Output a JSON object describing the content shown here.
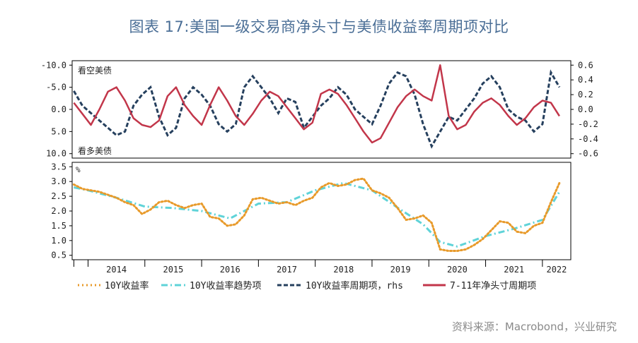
{
  "title": "图表 17:美国一级交易商净头寸与美债收益率周期项对比",
  "source": "资料来源：Macrobond，兴业研究",
  "colors": {
    "yield": "#e89a2a",
    "trend": "#5fd3d8",
    "cycle": "#26405e",
    "net": "#c2364a",
    "axis": "#000000"
  },
  "chart_data": [
    {
      "type": "line",
      "annotations": [
        "看空美债",
        "看多美债"
      ],
      "y_left": {
        "ticks": [
          "-10.0",
          "-5.0",
          "0.0",
          "5.0",
          "10.0"
        ],
        "range": [
          -11,
          11
        ],
        "inverted": true
      },
      "y_right": {
        "ticks": [
          "0.6",
          "0.4",
          "0.2",
          "0.0",
          "-0.2",
          "-0.4",
          "-0.6"
        ],
        "range": [
          -0.66,
          0.66
        ]
      },
      "series": [
        {
          "name": "7-11年净头寸周期项",
          "axis": "left",
          "style": "solid",
          "x": [
            2013.75,
            2013.9,
            2014.05,
            2014.2,
            2014.35,
            2014.5,
            2014.65,
            2014.8,
            2014.95,
            2015.1,
            2015.25,
            2015.4,
            2015.55,
            2015.7,
            2015.85,
            2016.0,
            2016.15,
            2016.3,
            2016.45,
            2016.6,
            2016.75,
            2016.9,
            2017.05,
            2017.2,
            2017.35,
            2017.5,
            2017.65,
            2017.8,
            2017.95,
            2018.1,
            2018.25,
            2018.4,
            2018.55,
            2018.7,
            2018.85,
            2019.0,
            2019.15,
            2019.3,
            2019.45,
            2019.6,
            2019.75,
            2019.9,
            2020.05,
            2020.2,
            2020.35,
            2020.5,
            2020.65,
            2020.8,
            2020.95,
            2021.1,
            2021.25,
            2021.4,
            2021.55,
            2021.7,
            2021.85,
            2022.0,
            2022.15,
            2022.3
          ],
          "y": [
            -1.5,
            1,
            3.5,
            0,
            -4,
            -5,
            -2,
            2,
            3.5,
            4,
            2.5,
            -3,
            -5,
            -1,
            1.5,
            3.5,
            -1,
            -5,
            -2,
            1.5,
            3.5,
            1,
            -2,
            -4,
            -3,
            -0.5,
            2,
            4.5,
            3,
            -3.5,
            -4.5,
            -3.5,
            -1,
            2,
            5,
            7.5,
            6.5,
            3,
            -0.5,
            -3,
            -4.5,
            -3,
            -2,
            -10,
            1.5,
            4.5,
            3.5,
            0.5,
            -1.5,
            -2.5,
            -1,
            1.5,
            3.5,
            2,
            -0.5,
            -2,
            -1.5,
            1.5
          ]
        },
        {
          "name": "10Y收益率周期项，rhs",
          "axis": "right",
          "style": "dashed",
          "x": [
            2013.75,
            2013.9,
            2014.05,
            2014.2,
            2014.35,
            2014.5,
            2014.65,
            2014.8,
            2014.95,
            2015.1,
            2015.25,
            2015.4,
            2015.55,
            2015.7,
            2015.85,
            2016.0,
            2016.15,
            2016.3,
            2016.45,
            2016.6,
            2016.75,
            2016.9,
            2017.05,
            2017.2,
            2017.35,
            2017.5,
            2017.65,
            2017.8,
            2017.95,
            2018.1,
            2018.25,
            2018.4,
            2018.55,
            2018.7,
            2018.85,
            2019.0,
            2019.15,
            2019.3,
            2019.45,
            2019.6,
            2019.75,
            2019.9,
            2020.05,
            2020.2,
            2020.35,
            2020.5,
            2020.65,
            2020.8,
            2020.95,
            2021.1,
            2021.25,
            2021.4,
            2021.55,
            2021.7,
            2021.85,
            2022.0,
            2022.15,
            2022.3
          ],
          "y": [
            0.25,
            0.05,
            -0.05,
            -0.15,
            -0.25,
            -0.35,
            -0.3,
            0.05,
            0.2,
            0.3,
            -0.1,
            -0.35,
            -0.25,
            0.15,
            0.3,
            0.2,
            0.05,
            -0.2,
            -0.3,
            -0.2,
            0.3,
            0.45,
            0.3,
            0.15,
            -0.05,
            0.15,
            0.1,
            -0.25,
            -0.1,
            0.05,
            0.15,
            0.3,
            0.2,
            0.0,
            -0.1,
            -0.2,
            0.05,
            0.35,
            0.5,
            0.45,
            0.2,
            -0.2,
            -0.5,
            -0.3,
            -0.1,
            -0.15,
            0.0,
            0.15,
            0.35,
            0.45,
            0.3,
            0.0,
            -0.1,
            -0.15,
            -0.3,
            -0.2,
            0.5,
            0.3
          ]
        }
      ]
    },
    {
      "type": "line",
      "unit": "%",
      "y_left": {
        "ticks": [
          "3.5",
          "3.0",
          "2.5",
          "2.0",
          "1.5",
          "1.0",
          "0.5"
        ],
        "range": [
          0.35,
          3.65
        ]
      },
      "x_axis": {
        "ticks": [
          "2014",
          "2015",
          "2016",
          "2017",
          "2018",
          "2019",
          "2020",
          "2021",
          "2022"
        ]
      },
      "series": [
        {
          "name": "10Y收益率",
          "style": "dotted",
          "x": [
            2013.75,
            2013.9,
            2014.05,
            2014.2,
            2014.35,
            2014.5,
            2014.65,
            2014.8,
            2014.95,
            2015.1,
            2015.25,
            2015.4,
            2015.55,
            2015.7,
            2015.85,
            2016.0,
            2016.15,
            2016.3,
            2016.45,
            2016.6,
            2016.75,
            2016.9,
            2017.05,
            2017.2,
            2017.35,
            2017.5,
            2017.65,
            2017.8,
            2017.95,
            2018.1,
            2018.25,
            2018.4,
            2018.55,
            2018.7,
            2018.85,
            2019.0,
            2019.15,
            2019.3,
            2019.45,
            2019.6,
            2019.75,
            2019.9,
            2020.05,
            2020.2,
            2020.35,
            2020.5,
            2020.65,
            2020.8,
            2020.95,
            2021.1,
            2021.25,
            2021.4,
            2021.55,
            2021.7,
            2021.85,
            2022.0,
            2022.15,
            2022.3
          ],
          "y": [
            2.9,
            2.75,
            2.7,
            2.65,
            2.55,
            2.45,
            2.3,
            2.2,
            1.9,
            2.05,
            2.3,
            2.35,
            2.2,
            2.1,
            2.2,
            2.25,
            1.8,
            1.75,
            1.5,
            1.55,
            1.85,
            2.4,
            2.45,
            2.35,
            2.25,
            2.3,
            2.2,
            2.35,
            2.45,
            2.8,
            2.95,
            2.85,
            2.9,
            3.05,
            3.1,
            2.7,
            2.6,
            2.45,
            2.1,
            1.7,
            1.75,
            1.85,
            1.6,
            0.7,
            0.65,
            0.65,
            0.7,
            0.85,
            1.05,
            1.35,
            1.65,
            1.6,
            1.3,
            1.25,
            1.5,
            1.6,
            2.3,
            2.95
          ]
        },
        {
          "name": "10Y收益率趋势项",
          "style": "dashdot",
          "x": [
            2013.75,
            2014.0,
            2014.5,
            2015.0,
            2015.5,
            2016.0,
            2016.5,
            2017.0,
            2017.5,
            2018.0,
            2018.5,
            2019.0,
            2019.5,
            2019.9,
            2020.2,
            2020.5,
            2021.0,
            2021.5,
            2022.0,
            2022.3
          ],
          "y": [
            2.8,
            2.7,
            2.45,
            2.15,
            2.1,
            2.0,
            1.75,
            2.25,
            2.3,
            2.7,
            2.95,
            2.7,
            2.05,
            1.55,
            0.95,
            0.8,
            1.15,
            1.4,
            1.7,
            2.65
          ]
        }
      ]
    }
  ]
}
